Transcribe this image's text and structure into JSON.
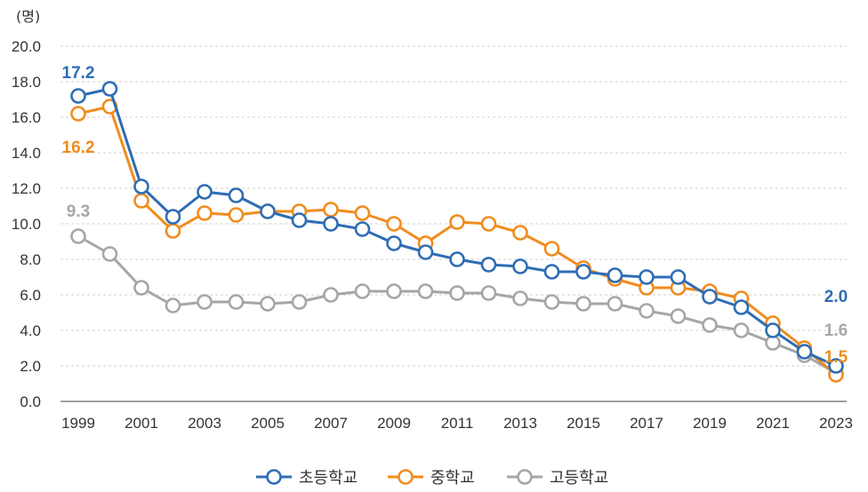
{
  "chart_data": {
    "type": "line",
    "unit_label": "(명)",
    "x": [
      1999,
      2000,
      2001,
      2002,
      2003,
      2004,
      2005,
      2006,
      2007,
      2008,
      2009,
      2010,
      2011,
      2012,
      2013,
      2014,
      2015,
      2016,
      2017,
      2018,
      2019,
      2020,
      2021,
      2022,
      2023
    ],
    "x_tick_labels": [
      "1999",
      "2001",
      "2003",
      "2005",
      "2007",
      "2009",
      "2011",
      "2013",
      "2015",
      "2017",
      "2019",
      "2021",
      "2023"
    ],
    "y_tick_labels": [
      "0.0",
      "2.0",
      "4.0",
      "6.0",
      "8.0",
      "10.0",
      "12.0",
      "14.0",
      "16.0",
      "18.0",
      "20.0"
    ],
    "ylim": [
      0,
      20
    ],
    "grid": true,
    "legend_position": "bottom-center",
    "series": [
      {
        "name": "초등학교",
        "color": "#2e6db4",
        "values": [
          17.2,
          17.6,
          12.1,
          10.4,
          11.8,
          11.6,
          10.7,
          10.2,
          10.0,
          9.7,
          8.9,
          8.4,
          8.0,
          7.7,
          7.6,
          7.3,
          7.3,
          7.1,
          7.0,
          7.0,
          5.9,
          5.3,
          4.0,
          2.8,
          2.0
        ],
        "annotations": [
          {
            "index": 0,
            "text": "17.2",
            "position": "above"
          },
          {
            "index": 24,
            "text": "2.0",
            "position": "above"
          }
        ]
      },
      {
        "name": "중학교",
        "color": "#f08c1e",
        "values": [
          16.2,
          16.6,
          11.3,
          9.6,
          10.6,
          10.5,
          10.7,
          10.7,
          10.8,
          10.6,
          10.0,
          8.9,
          10.1,
          10.0,
          9.5,
          8.6,
          7.5,
          6.9,
          6.4,
          6.4,
          6.2,
          5.8,
          4.4,
          3.0,
          1.5
        ],
        "annotations": [
          {
            "index": 0,
            "text": "16.2",
            "position": "below"
          },
          {
            "index": 24,
            "text": "1.5",
            "position": "above"
          }
        ]
      },
      {
        "name": "고등학교",
        "color": "#a6a6a6",
        "values": [
          9.3,
          8.3,
          6.4,
          5.4,
          5.6,
          5.6,
          5.5,
          5.6,
          6.0,
          6.2,
          6.2,
          6.2,
          6.1,
          6.1,
          5.8,
          5.6,
          5.5,
          5.5,
          5.1,
          4.8,
          4.3,
          4.0,
          3.3,
          2.6,
          1.6
        ],
        "annotations": [
          {
            "index": 0,
            "text": "9.3",
            "position": "above"
          },
          {
            "index": 24,
            "text": "1.6",
            "position": "above"
          }
        ]
      }
    ]
  }
}
